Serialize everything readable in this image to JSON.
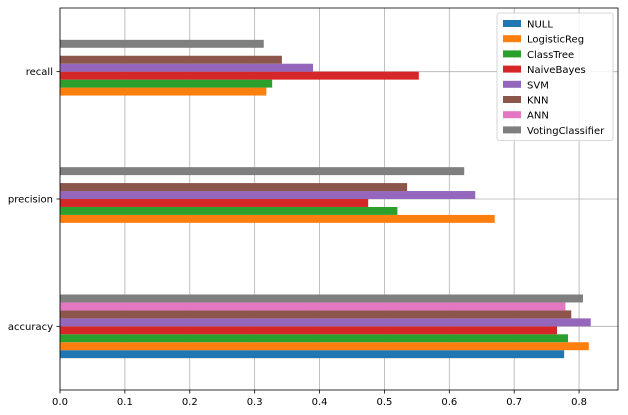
{
  "chart_data": {
    "type": "bar",
    "orientation": "horizontal",
    "categories": [
      "accuracy",
      "precision",
      "recall"
    ],
    "series": [
      {
        "name": "NULL",
        "color": "#1f77b4",
        "values": [
          0.777,
          0.0,
          0.0
        ]
      },
      {
        "name": "LogisticReg",
        "color": "#ff7f0e",
        "values": [
          0.815,
          0.67,
          0.318
        ]
      },
      {
        "name": "ClassTree",
        "color": "#2ca02c",
        "values": [
          0.783,
          0.52,
          0.327
        ]
      },
      {
        "name": "NaiveBayes",
        "color": "#d62728",
        "values": [
          0.766,
          0.475,
          0.553
        ]
      },
      {
        "name": "SVM",
        "color": "#9467bd",
        "values": [
          0.818,
          0.64,
          0.39
        ]
      },
      {
        "name": "KNN",
        "color": "#8c564b",
        "values": [
          0.788,
          0.535,
          0.342
        ]
      },
      {
        "name": "ANN",
        "color": "#e377c2",
        "values": [
          0.779,
          0.0,
          0.0
        ]
      },
      {
        "name": "VotingClassifier",
        "color": "#7f7f7f",
        "values": [
          0.806,
          0.623,
          0.314
        ]
      }
    ],
    "xlim": [
      0.0,
      0.86
    ],
    "xticks": [
      "0.0",
      "0.1",
      "0.2",
      "0.3",
      "0.4",
      "0.5",
      "0.6",
      "0.7",
      "0.8"
    ],
    "xtick_values": [
      0.0,
      0.1,
      0.2,
      0.3,
      0.4,
      0.5,
      0.6,
      0.7,
      0.8
    ],
    "title": "",
    "xlabel": "",
    "ylabel": "",
    "grid": true,
    "legend_position": "top-right"
  }
}
